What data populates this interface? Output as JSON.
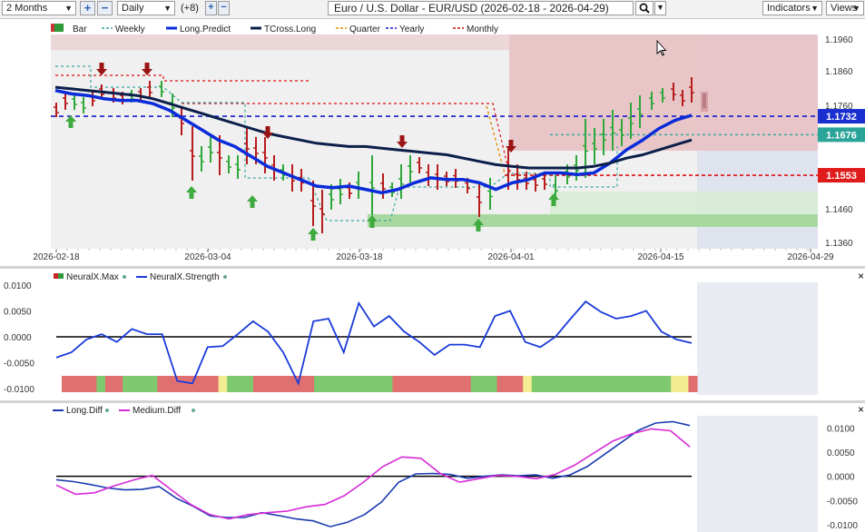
{
  "toolbar": {
    "range": "2 Months",
    "interval": "Daily",
    "offset": "(+8)",
    "instrument": "Euro / U.S. Dollar - EUR/USD (2026-02-18 - 2026-04-29)",
    "indicators": "Indicators",
    "views": "Views"
  },
  "legend_main": [
    {
      "label": "Bar",
      "color": "#2e7d32"
    },
    {
      "label": "Weekly",
      "color": "#3aa8a0"
    },
    {
      "label": "Long.Predict",
      "color": "#0a2bd9"
    },
    {
      "label": "TCross.Long",
      "color": "#0b1f4a"
    },
    {
      "label": "Quarter",
      "color": "#e08a00"
    },
    {
      "label": "Yearly",
      "color": "#1a1acc"
    },
    {
      "label": "Monthly",
      "color": "#cc1111"
    }
  ],
  "legend_neural": [
    {
      "label": "NeuralX.Max",
      "color": "#cc2222"
    },
    {
      "label": "NeuralX.Strength",
      "color": "#1a3bd9"
    }
  ],
  "legend_diff": [
    {
      "label": "Long.Diff",
      "color": "#1a3bb0"
    },
    {
      "label": "Medium.Diff",
      "color": "#d62ad6"
    }
  ],
  "main_axis": {
    "y_ticks": [
      "1.1960",
      "1.1860",
      "1.1760",
      "1.1460",
      "1.1360"
    ],
    "x_ticks": [
      "2026-02-18",
      "2026-03-04",
      "2026-03-18",
      "2026-04-01",
      "2026-04-15",
      "2026-04-29"
    ]
  },
  "price_labels": [
    {
      "text": "1.1732",
      "color": "#1a2fd0"
    },
    {
      "text": "1.1676",
      "color": "#2aa39a"
    },
    {
      "text": "1.1553",
      "color": "#e01b1b"
    }
  ],
  "neural_axis": {
    "y_ticks": [
      "0.0100",
      "0.0050",
      "0.0000",
      "-0.0050",
      "-0.0100"
    ]
  },
  "diff_axis": {
    "y_ticks": [
      "0.0100",
      "0.0050",
      "0.0000",
      "-0.0050",
      "-0.0100"
    ]
  },
  "chart_data": [
    {
      "type": "line",
      "title": "Euro / U.S. Dollar - EUR/USD",
      "x_range": [
        "2026-02-18",
        "2026-04-29"
      ],
      "ylim": [
        1.133,
        1.198
      ],
      "levels": {
        "yearly": 1.1732,
        "weekly": 1.1676,
        "monthly": 1.1553
      },
      "series": [
        {
          "name": "Long.Predict",
          "values": [
            1.181,
            1.18,
            1.1795,
            1.1785,
            1.178,
            1.178,
            1.177,
            1.175,
            1.172,
            1.169,
            1.166,
            1.164,
            1.161,
            1.158,
            1.156,
            1.154,
            1.152,
            1.1515,
            1.152,
            1.151,
            1.15,
            1.151,
            1.153,
            1.1545,
            1.154,
            1.154,
            1.153,
            1.151,
            1.153,
            1.154,
            1.156,
            1.156,
            1.1555,
            1.156,
            1.159,
            1.163,
            1.166,
            1.1695,
            1.172,
            1.1735
          ]
        },
        {
          "name": "TCross.Long",
          "values": [
            1.182,
            1.1815,
            1.181,
            1.1805,
            1.18,
            1.1795,
            1.1785,
            1.177,
            1.1755,
            1.174,
            1.1725,
            1.171,
            1.1695,
            1.168,
            1.167,
            1.166,
            1.165,
            1.1645,
            1.164,
            1.164,
            1.1635,
            1.163,
            1.1625,
            1.162,
            1.1615,
            1.1605,
            1.1595,
            1.1585,
            1.158,
            1.1575,
            1.1575,
            1.1575,
            1.1575,
            1.158,
            1.159,
            1.1605,
            1.1615,
            1.163,
            1.1645,
            1.166
          ]
        }
      ]
    },
    {
      "type": "line",
      "series": [
        {
          "name": "NeuralX.Strength",
          "values": [
            -0.004,
            -0.003,
            -0.0005,
            0.0005,
            -0.001,
            0.0015,
            0.0005,
            0.0005,
            -0.0085,
            -0.009,
            -0.002,
            -0.0018,
            0.0005,
            0.003,
            0.001,
            -0.003,
            -0.009,
            0.003,
            0.0035,
            -0.003,
            0.0065,
            0.002,
            0.004,
            0.001,
            -0.001,
            -0.0035,
            -0.0015,
            -0.0015,
            -0.002,
            0.004,
            0.005,
            -0.001,
            -0.002,
            0.0,
            0.0035,
            0.0068,
            0.0048,
            0.0035,
            0.004,
            0.005,
            0.001,
            -0.0005,
            -0.0012
          ]
        }
      ],
      "ylim": [
        -0.0105,
        0.0105
      ]
    },
    {
      "type": "line",
      "series": [
        {
          "name": "Long.Diff",
          "values": [
            -0.0007,
            -0.0011,
            -0.0017,
            -0.0024,
            -0.0028,
            -0.0027,
            -0.0021,
            -0.0045,
            -0.0062,
            -0.0082,
            -0.0085,
            -0.0085,
            -0.0075,
            -0.0081,
            -0.0088,
            -0.0092,
            -0.0104,
            -0.0095,
            -0.0079,
            -0.0053,
            -0.0012,
            0.0005,
            0.0006,
            0.0004,
            -0.0004,
            0.0,
            0.0003,
            0.0001,
            0.0003,
            -0.0004,
            0.0003,
            0.002,
            0.0045,
            0.007,
            0.0095,
            0.011,
            0.0113,
            0.0105
          ]
        },
        {
          "name": "Medium.Diff",
          "values": [
            -0.0018,
            -0.0037,
            -0.0034,
            -0.002,
            -0.0008,
            0.0002,
            -0.0028,
            -0.0058,
            -0.0079,
            -0.0088,
            -0.0079,
            -0.0075,
            -0.0072,
            -0.0063,
            -0.0058,
            -0.004,
            -0.0012,
            0.002,
            0.004,
            0.0037,
            0.0006,
            -0.0012,
            -0.0005,
            0.0002,
            0.0,
            -0.0005,
            0.0004,
            0.0023,
            0.0048,
            0.0073,
            0.0088,
            0.0098,
            0.0094,
            0.0061
          ]
        }
      ],
      "ylim": [
        -0.0115,
        0.0125
      ]
    }
  ]
}
